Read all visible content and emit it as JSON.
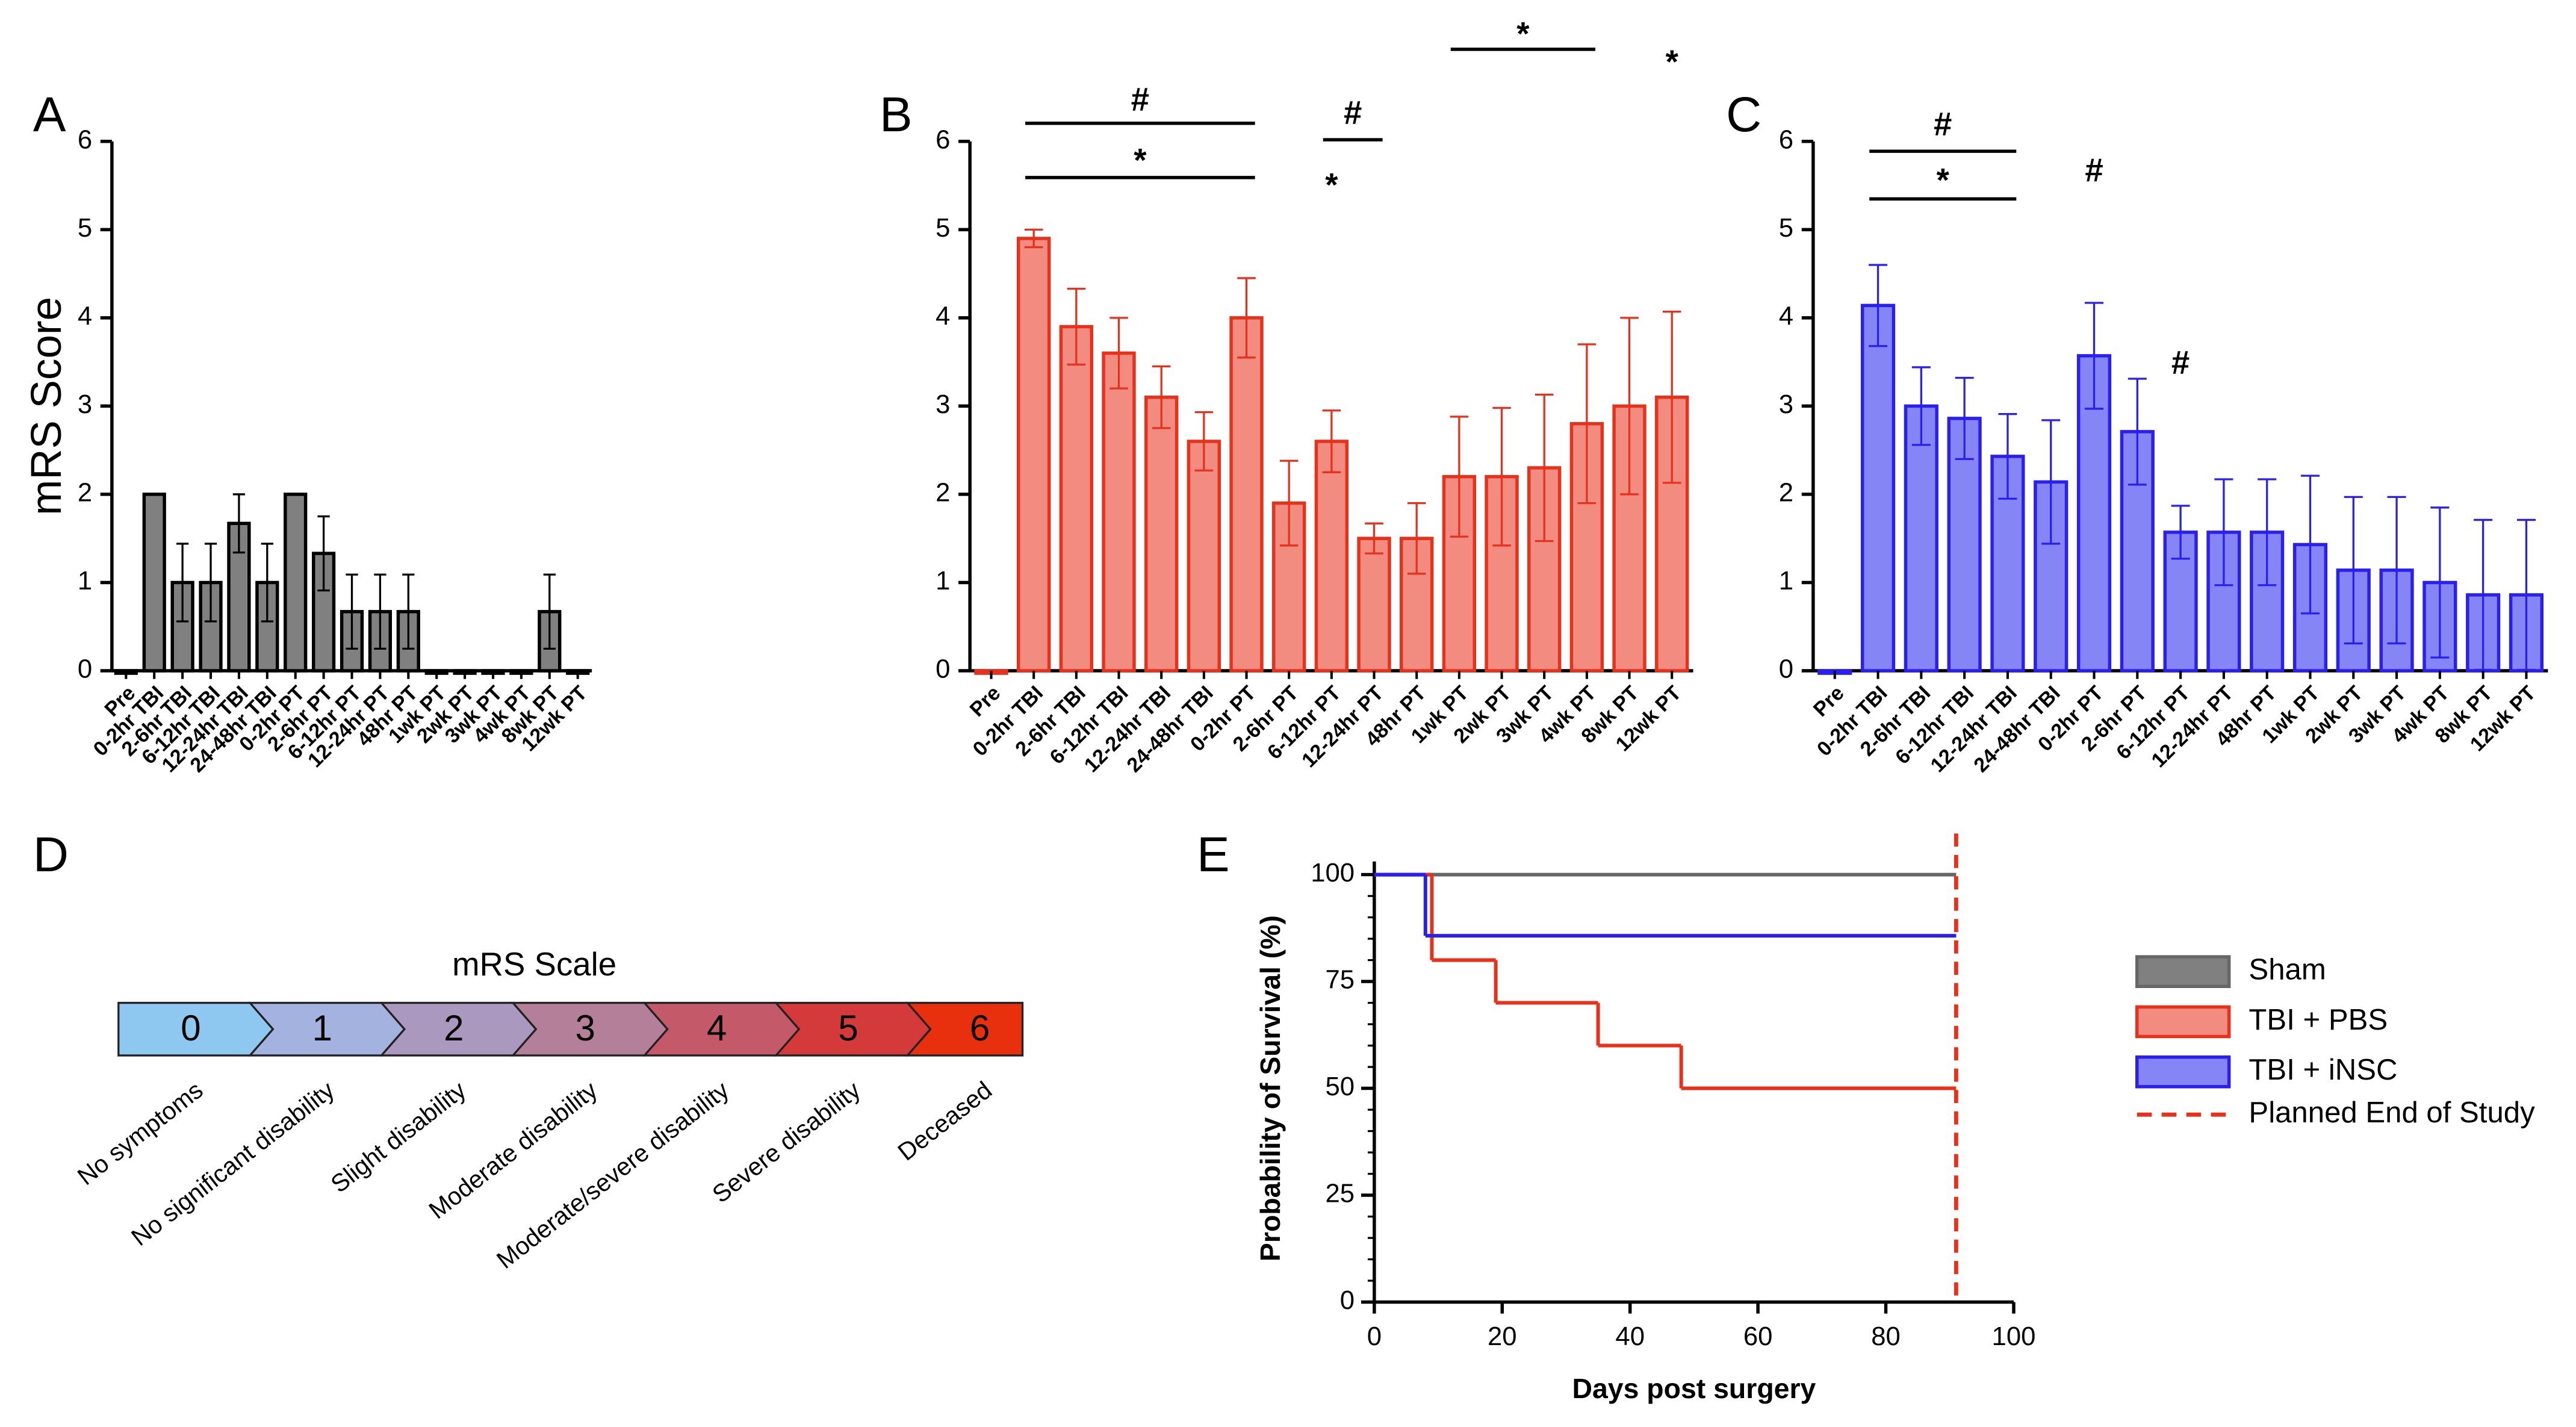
{
  "chart_data": [
    {
      "panel": "A",
      "type": "bar",
      "ylabel": "mRS Score",
      "categories": [
        "Pre",
        "0-2hr TBI",
        "2-6hr TBI",
        "6-12hr TBI",
        "12-24hr TBI",
        "24-48hr TBI",
        "0-2hr PT",
        "2-6hr PT",
        "6-12hr PT",
        "12-24hr PT",
        "48hr PT",
        "1wk PT",
        "2wk PT",
        "3wk PT",
        "4wk PT",
        "8wk PT",
        "12wk PT"
      ],
      "values": [
        0,
        2,
        1,
        1,
        1.67,
        1,
        2,
        1.33,
        0.67,
        0.67,
        0.67,
        0,
        0,
        0,
        0,
        0.67,
        0
      ],
      "errors": [
        0,
        0,
        0.44,
        0.44,
        0.33,
        0.44,
        0,
        0.42,
        0.42,
        0.42,
        0.42,
        0,
        0,
        0,
        0,
        0.42,
        0
      ],
      "color": "#808080",
      "stroke": "#000000",
      "ylim": [
        0,
        6
      ],
      "yticks": [
        0,
        1,
        2,
        3,
        4,
        5,
        6
      ]
    },
    {
      "panel": "B",
      "type": "bar",
      "categories": [
        "Pre",
        "0-2hr TBI",
        "2-6hr TBI",
        "6-12hr TBI",
        "12-24hr TBI",
        "24-48hr TBI",
        "0-2hr PT",
        "2-6hr PT",
        "6-12hr PT",
        "12-24hr PT",
        "48hr PT",
        "1wk PT",
        "2wk PT",
        "3wk PT",
        "4wk PT",
        "8wk PT",
        "12wk PT"
      ],
      "values": [
        0,
        4.9,
        3.9,
        3.6,
        3.1,
        2.6,
        4.0,
        1.9,
        2.6,
        1.5,
        1.5,
        2.2,
        2.2,
        2.3,
        2.8,
        3.0,
        3.1
      ],
      "errors": [
        0,
        0.1,
        0.43,
        0.4,
        0.35,
        0.33,
        0.45,
        0.48,
        0.35,
        0.17,
        0.4,
        0.68,
        0.78,
        0.83,
        0.9,
        1.0,
        0.97
      ],
      "color": "#f28b80",
      "stroke": "#e8311a",
      "ylim": [
        0,
        6
      ],
      "yticks": [
        0,
        1,
        2,
        3,
        4,
        5,
        6
      ],
      "annotations": [
        "#",
        "*",
        "#",
        "*",
        "*",
        "*"
      ]
    },
    {
      "panel": "C",
      "type": "bar",
      "categories": [
        "Pre",
        "0-2hr TBI",
        "2-6hr TBI",
        "6-12hr TBI",
        "12-24hr TBI",
        "24-48hr TBI",
        "0-2hr PT",
        "2-6hr PT",
        "6-12hr PT",
        "12-24hr PT",
        "48hr PT",
        "1wk PT",
        "2wk PT",
        "3wk PT",
        "4wk PT",
        "8wk PT",
        "12wk PT"
      ],
      "values": [
        0,
        4.14,
        3.0,
        2.86,
        2.43,
        2.14,
        3.57,
        2.71,
        1.57,
        1.57,
        1.57,
        1.43,
        1.14,
        1.14,
        1.0,
        0.86,
        0.86
      ],
      "errors": [
        0,
        0.46,
        0.44,
        0.46,
        0.48,
        0.7,
        0.6,
        0.6,
        0.3,
        0.6,
        0.6,
        0.78,
        0.83,
        0.83,
        0.85,
        0.85,
        0.85
      ],
      "color": "#8585f5",
      "stroke": "#2a1ff0",
      "ylim": [
        0,
        6
      ],
      "yticks": [
        0,
        1,
        2,
        3,
        4,
        5,
        6
      ],
      "annotations": [
        "#",
        "*",
        "#",
        "#"
      ]
    },
    {
      "panel": "E",
      "type": "line",
      "xlabel": "Days post surgery",
      "ylabel": "Probability of Survival (%)",
      "xlim": [
        0,
        100
      ],
      "xticks": [
        0,
        20,
        40,
        60,
        80,
        100
      ],
      "ylim": [
        0,
        100
      ],
      "yticks": [
        0,
        25,
        50,
        75,
        100
      ],
      "series": [
        {
          "name": "Sham",
          "color": "#666666",
          "fill": "#808080",
          "x": [
            0,
            91
          ],
          "values": [
            100,
            100
          ]
        },
        {
          "name": "TBI + PBS",
          "color": "#e8311a",
          "fill": "#f28b80",
          "x": [
            0,
            9,
            19,
            35,
            48,
            91
          ],
          "values": [
            100,
            80,
            70,
            60,
            50,
            50
          ]
        },
        {
          "name": "TBI + iNSC",
          "color": "#2a1ff0",
          "fill": "#8585f5",
          "x": [
            0,
            8,
            91
          ],
          "values": [
            100,
            85.7,
            85.7
          ]
        }
      ],
      "reference_line": {
        "name": "Planned End of Study",
        "x": 91,
        "color": "#e8311a"
      }
    }
  ],
  "diagram": {
    "panel": "D",
    "title": "mRS Scale",
    "levels": [
      {
        "score": "0",
        "label": "No symptoms"
      },
      {
        "score": "1",
        "label": "No significant disability"
      },
      {
        "score": "2",
        "label": "Slight disability"
      },
      {
        "score": "3",
        "label": "Moderate disability"
      },
      {
        "score": "4",
        "label": "Moderate/severe disability"
      },
      {
        "score": "5",
        "label": "Severe disability"
      },
      {
        "score": "6",
        "label": "Deceased"
      }
    ]
  }
}
